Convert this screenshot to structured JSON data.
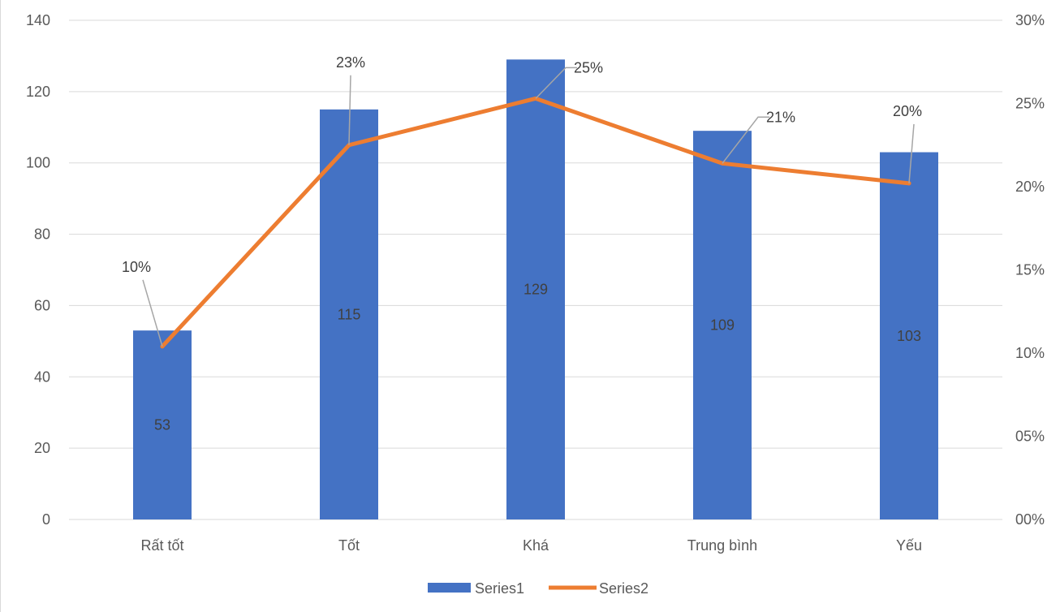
{
  "chart_data": {
    "type": "bar",
    "categories": [
      "Rất tốt",
      "Tốt",
      "Khá",
      "Trung bình",
      "Yếu"
    ],
    "series": [
      {
        "name": "Series1",
        "type": "bar",
        "axis": "left",
        "values": [
          53,
          115,
          129,
          109,
          103
        ],
        "labels": [
          "53",
          "115",
          "129",
          "109",
          "103"
        ],
        "color": "#4472c4"
      },
      {
        "name": "Series2",
        "type": "line",
        "axis": "right",
        "values": [
          0.104,
          0.225,
          0.253,
          0.214,
          0.202
        ],
        "labels": [
          "10%",
          "23%",
          "25%",
          "21%",
          "20%"
        ],
        "color": "#ed7d31"
      }
    ],
    "y_left": {
      "ylim": [
        0,
        140
      ],
      "ticks": [
        "0",
        "20",
        "40",
        "60",
        "80",
        "100",
        "120",
        "140"
      ]
    },
    "y_right": {
      "ylim": [
        0,
        0.3
      ],
      "ticks": [
        "00%",
        "05%",
        "10%",
        "15%",
        "20%",
        "25%",
        "30%"
      ]
    },
    "grid": true,
    "legend": "bottom",
    "title": "",
    "xlabel": "",
    "ylabel": ""
  }
}
